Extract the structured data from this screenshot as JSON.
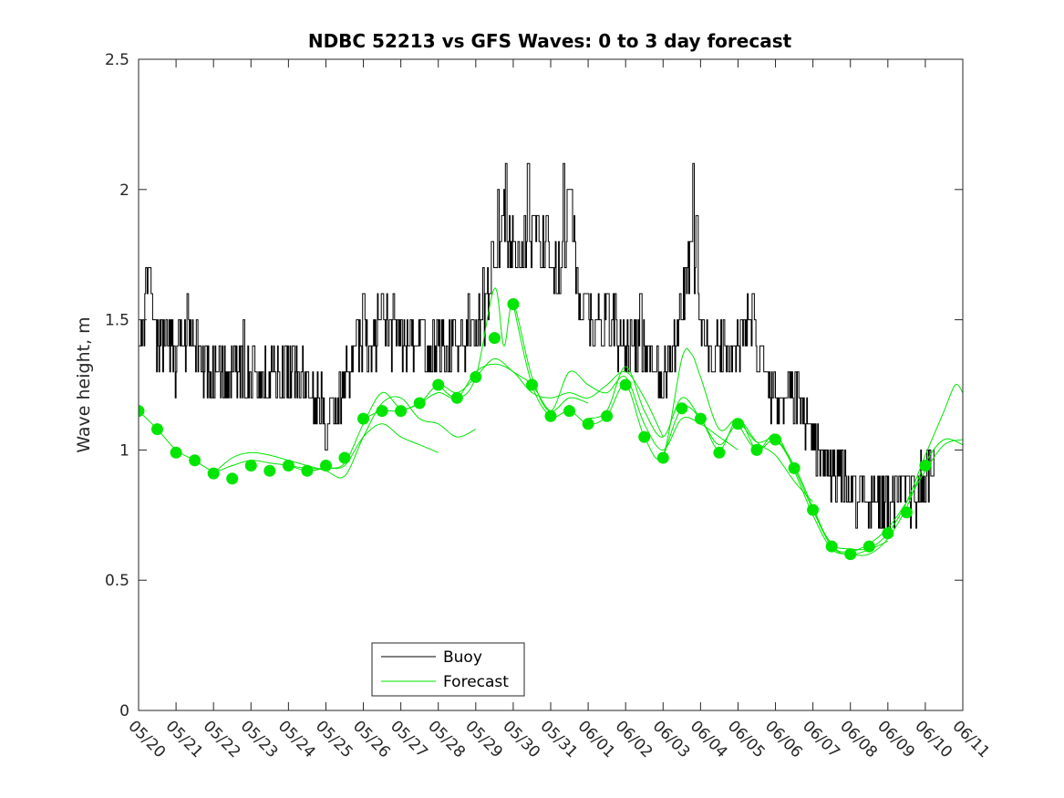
{
  "chart_data": {
    "type": "line",
    "title": "NDBC 52213 vs GFS Waves: 0 to 3 day forecast",
    "xlabel": "",
    "ylabel": "Wave height, m",
    "x_tick_labels": [
      "05/20",
      "05/21",
      "05/22",
      "05/23",
      "05/24",
      "05/25",
      "05/26",
      "05/27",
      "05/28",
      "05/29",
      "05/30",
      "05/31",
      "06/01",
      "06/02",
      "06/03",
      "06/04",
      "06/05",
      "06/06",
      "06/07",
      "06/08",
      "06/09",
      "06/10",
      "06/11"
    ],
    "y_tick_labels": [
      "0",
      "0.5",
      "1",
      "1.5",
      "2",
      "2.5"
    ],
    "ylim": [
      0,
      2.5
    ],
    "xlim_days": [
      0,
      22
    ],
    "grid": false,
    "legend_position": "bottom-center",
    "colors": {
      "buoy": "#000000",
      "forecast": "#00e600",
      "axes": "#262626"
    },
    "legend": [
      {
        "key": "buoy",
        "label": "Buoy"
      },
      {
        "key": "forecast",
        "label": "Forecast"
      }
    ],
    "buoy_anchors": [
      [
        0.0,
        1.45
      ],
      [
        0.15,
        1.45
      ],
      [
        0.25,
        1.65
      ],
      [
        0.35,
        1.55
      ],
      [
        0.5,
        1.4
      ],
      [
        0.75,
        1.45
      ],
      [
        1.0,
        1.35
      ],
      [
        1.25,
        1.4
      ],
      [
        1.5,
        1.45
      ],
      [
        1.75,
        1.3
      ],
      [
        2.0,
        1.28
      ],
      [
        2.5,
        1.3
      ],
      [
        3.0,
        1.3
      ],
      [
        3.5,
        1.27
      ],
      [
        4.0,
        1.3
      ],
      [
        4.5,
        1.28
      ],
      [
        4.75,
        1.2
      ],
      [
        5.0,
        1.12
      ],
      [
        5.25,
        1.15
      ],
      [
        5.5,
        1.28
      ],
      [
        5.75,
        1.35
      ],
      [
        6.0,
        1.45
      ],
      [
        6.5,
        1.45
      ],
      [
        7.0,
        1.45
      ],
      [
        7.5,
        1.4
      ],
      [
        8.0,
        1.38
      ],
      [
        8.5,
        1.4
      ],
      [
        9.0,
        1.45
      ],
      [
        9.25,
        1.55
      ],
      [
        9.5,
        1.75
      ],
      [
        9.75,
        1.85
      ],
      [
        10.0,
        1.75
      ],
      [
        10.25,
        1.65
      ],
      [
        10.5,
        1.85
      ],
      [
        10.75,
        1.8
      ],
      [
        11.0,
        1.7
      ],
      [
        11.25,
        1.65
      ],
      [
        11.5,
        2.0
      ],
      [
        11.75,
        1.55
      ],
      [
        12.0,
        1.5
      ],
      [
        12.5,
        1.48
      ],
      [
        13.0,
        1.4
      ],
      [
        13.5,
        1.38
      ],
      [
        14.0,
        1.3
      ],
      [
        14.25,
        1.4
      ],
      [
        14.5,
        1.55
      ],
      [
        14.75,
        1.75
      ],
      [
        15.0,
        1.5
      ],
      [
        15.25,
        1.35
      ],
      [
        15.5,
        1.38
      ],
      [
        16.0,
        1.4
      ],
      [
        16.25,
        1.5
      ],
      [
        16.5,
        1.4
      ],
      [
        16.75,
        1.25
      ],
      [
        17.0,
        1.22
      ],
      [
        17.5,
        1.22
      ],
      [
        17.75,
        1.15
      ],
      [
        18.0,
        1.05
      ],
      [
        18.25,
        0.95
      ],
      [
        18.5,
        0.9
      ],
      [
        18.75,
        0.88
      ],
      [
        19.0,
        0.85
      ],
      [
        19.5,
        0.82
      ],
      [
        20.0,
        0.8
      ],
      [
        20.25,
        0.8
      ],
      [
        20.5,
        0.82
      ],
      [
        20.75,
        0.85
      ],
      [
        21.0,
        0.88
      ],
      [
        21.25,
        0.95
      ]
    ],
    "buoy_spikes": [
      [
        0.2,
        1.7
      ],
      [
        0.3,
        1.7
      ],
      [
        1.3,
        1.6
      ],
      [
        2.8,
        1.5
      ],
      [
        4.6,
        1.2
      ],
      [
        5.0,
        1.0
      ],
      [
        6.0,
        1.6
      ],
      [
        6.5,
        1.6
      ],
      [
        6.8,
        1.6
      ],
      [
        8.8,
        1.55
      ],
      [
        9.2,
        1.7
      ],
      [
        9.6,
        2.0
      ],
      [
        9.8,
        2.1
      ],
      [
        10.3,
        1.9
      ],
      [
        10.4,
        2.1
      ],
      [
        10.9,
        1.9
      ],
      [
        11.35,
        2.1
      ],
      [
        11.55,
        2.0
      ],
      [
        12.5,
        1.6
      ],
      [
        13.4,
        1.6
      ],
      [
        14.8,
        2.1
      ],
      [
        14.9,
        1.9
      ],
      [
        16.4,
        1.6
      ],
      [
        17.6,
        1.3
      ],
      [
        19.8,
        0.7
      ]
    ],
    "forecast_markers": [
      [
        0.0,
        1.15
      ],
      [
        0.5,
        1.08
      ],
      [
        1.0,
        0.99
      ],
      [
        1.5,
        0.96
      ],
      [
        2.0,
        0.91
      ],
      [
        2.5,
        0.89
      ],
      [
        3.0,
        0.94
      ],
      [
        3.5,
        0.92
      ],
      [
        4.0,
        0.94
      ],
      [
        4.5,
        0.92
      ],
      [
        5.0,
        0.94
      ],
      [
        5.5,
        0.97
      ],
      [
        6.0,
        1.12
      ],
      [
        6.5,
        1.15
      ],
      [
        7.0,
        1.15
      ],
      [
        7.5,
        1.18
      ],
      [
        8.0,
        1.25
      ],
      [
        8.5,
        1.2
      ],
      [
        9.0,
        1.28
      ],
      [
        9.5,
        1.43
      ],
      [
        10.0,
        1.56
      ],
      [
        10.5,
        1.25
      ],
      [
        11.0,
        1.13
      ],
      [
        11.5,
        1.15
      ],
      [
        12.0,
        1.1
      ],
      [
        12.5,
        1.13
      ],
      [
        13.0,
        1.25
      ],
      [
        13.5,
        1.05
      ],
      [
        14.0,
        0.97
      ],
      [
        14.5,
        1.16
      ],
      [
        15.0,
        1.12
      ],
      [
        15.5,
        0.99
      ],
      [
        16.0,
        1.1
      ],
      [
        16.5,
        1.0
      ],
      [
        17.0,
        1.04
      ],
      [
        17.5,
        0.93
      ],
      [
        18.0,
        0.77
      ],
      [
        18.5,
        0.63
      ],
      [
        19.0,
        0.6
      ],
      [
        19.5,
        0.63
      ],
      [
        20.0,
        0.68
      ],
      [
        20.5,
        0.76
      ],
      [
        21.0,
        0.94
      ]
    ],
    "forecast_runs": [
      [
        [
          0.0,
          1.15
        ],
        [
          0.5,
          1.08
        ],
        [
          1.0,
          1.0
        ],
        [
          1.5,
          0.96
        ],
        [
          2.0,
          0.92
        ],
        [
          2.5,
          0.94
        ],
        [
          3.0,
          0.96
        ],
        [
          3.5,
          0.95
        ],
        [
          4.0,
          0.94
        ],
        [
          4.5,
          0.92
        ],
        [
          5.0,
          0.93
        ],
        [
          5.5,
          0.94
        ],
        [
          6.0,
          1.05
        ],
        [
          6.5,
          1.1
        ],
        [
          7.0,
          1.05
        ],
        [
          7.5,
          1.02
        ],
        [
          8.0,
          0.99
        ]
      ],
      [
        [
          2.0,
          0.91
        ],
        [
          2.5,
          0.97
        ],
        [
          3.0,
          0.99
        ],
        [
          3.5,
          0.98
        ],
        [
          4.0,
          0.96
        ],
        [
          4.5,
          0.94
        ],
        [
          5.0,
          0.92
        ],
        [
          5.5,
          0.9
        ],
        [
          6.0,
          1.05
        ],
        [
          6.5,
          1.18
        ],
        [
          7.0,
          1.2
        ],
        [
          7.5,
          1.12
        ],
        [
          8.0,
          1.1
        ],
        [
          8.5,
          1.05
        ],
        [
          9.0,
          1.08
        ]
      ],
      [
        [
          4.0,
          0.94
        ],
        [
          4.5,
          0.93
        ],
        [
          5.0,
          0.93
        ],
        [
          5.5,
          0.95
        ],
        [
          6.0,
          1.1
        ],
        [
          6.5,
          1.22
        ],
        [
          7.0,
          1.16
        ],
        [
          7.5,
          1.18
        ],
        [
          8.0,
          1.25
        ],
        [
          8.5,
          1.22
        ],
        [
          9.0,
          1.28
        ],
        [
          9.5,
          1.35
        ],
        [
          10.0,
          1.3
        ],
        [
          10.5,
          1.25
        ],
        [
          11.0,
          1.15
        ],
        [
          11.5,
          1.2
        ],
        [
          12.0,
          1.18
        ]
      ],
      [
        [
          6.0,
          1.12
        ],
        [
          6.5,
          1.15
        ],
        [
          7.0,
          1.15
        ],
        [
          7.5,
          1.18
        ],
        [
          8.0,
          1.22
        ],
        [
          8.5,
          1.2
        ],
        [
          9.0,
          1.3
        ],
        [
          9.5,
          1.33
        ],
        [
          10.0,
          1.3
        ],
        [
          10.5,
          1.22
        ],
        [
          11.0,
          1.2
        ],
        [
          11.5,
          1.22
        ],
        [
          12.0,
          1.2
        ],
        [
          12.5,
          1.25
        ],
        [
          13.0,
          1.3
        ],
        [
          13.5,
          1.2
        ],
        [
          14.0,
          1.05
        ]
      ],
      [
        [
          8.0,
          1.25
        ],
        [
          8.5,
          1.2
        ],
        [
          9.0,
          1.28
        ],
        [
          9.5,
          1.62
        ],
        [
          9.75,
          1.4
        ],
        [
          10.0,
          1.56
        ],
        [
          10.5,
          1.28
        ],
        [
          11.0,
          1.15
        ],
        [
          11.5,
          1.3
        ],
        [
          12.0,
          1.25
        ],
        [
          12.5,
          1.22
        ],
        [
          13.0,
          1.28
        ],
        [
          13.5,
          1.1
        ],
        [
          14.0,
          1.0
        ],
        [
          14.5,
          1.12
        ],
        [
          15.0,
          1.1
        ],
        [
          15.5,
          1.05
        ],
        [
          16.0,
          1.0
        ]
      ],
      [
        [
          10.0,
          1.56
        ],
        [
          10.5,
          1.25
        ],
        [
          11.0,
          1.13
        ],
        [
          11.5,
          1.15
        ],
        [
          12.0,
          1.1
        ],
        [
          12.5,
          1.13
        ],
        [
          13.0,
          1.25
        ],
        [
          13.5,
          1.05
        ],
        [
          14.0,
          0.98
        ],
        [
          14.5,
          1.35
        ],
        [
          14.75,
          1.37
        ],
        [
          15.0,
          1.28
        ],
        [
          15.5,
          1.08
        ],
        [
          16.0,
          1.12
        ],
        [
          16.5,
          1.03
        ],
        [
          17.0,
          0.98
        ],
        [
          17.5,
          0.88
        ],
        [
          18.0,
          0.8
        ]
      ],
      [
        [
          12.0,
          1.12
        ],
        [
          12.5,
          1.15
        ],
        [
          13.0,
          1.32
        ],
        [
          13.5,
          1.15
        ],
        [
          14.0,
          1.05
        ],
        [
          14.5,
          1.2
        ],
        [
          15.0,
          1.12
        ],
        [
          15.5,
          1.02
        ],
        [
          16.0,
          1.1
        ],
        [
          16.5,
          1.03
        ],
        [
          17.0,
          1.04
        ],
        [
          17.5,
          0.93
        ],
        [
          18.0,
          0.77
        ],
        [
          18.5,
          0.64
        ],
        [
          19.0,
          0.62
        ],
        [
          19.5,
          0.62
        ],
        [
          20.0,
          0.65
        ]
      ],
      [
        [
          14.0,
          0.97
        ],
        [
          14.5,
          1.16
        ],
        [
          15.0,
          1.12
        ],
        [
          15.5,
          1.0
        ],
        [
          16.0,
          1.12
        ],
        [
          16.5,
          1.0
        ],
        [
          17.0,
          1.06
        ],
        [
          17.5,
          0.92
        ],
        [
          18.0,
          0.75
        ],
        [
          18.5,
          0.62
        ],
        [
          19.0,
          0.6
        ],
        [
          19.5,
          0.6
        ],
        [
          20.0,
          0.66
        ],
        [
          20.5,
          0.78
        ],
        [
          21.0,
          0.95
        ],
        [
          21.5,
          1.04
        ],
        [
          22.0,
          1.02
        ]
      ],
      [
        [
          16.0,
          1.1
        ],
        [
          16.5,
          1.0
        ],
        [
          17.0,
          1.04
        ],
        [
          17.5,
          0.94
        ],
        [
          18.0,
          0.78
        ],
        [
          18.5,
          0.63
        ],
        [
          19.0,
          0.6
        ],
        [
          19.5,
          0.62
        ],
        [
          20.0,
          0.68
        ],
        [
          20.5,
          0.8
        ],
        [
          21.0,
          0.98
        ],
        [
          21.5,
          1.15
        ],
        [
          21.8,
          1.25
        ],
        [
          22.0,
          1.22
        ]
      ],
      [
        [
          18.0,
          0.77
        ],
        [
          18.5,
          0.63
        ],
        [
          19.0,
          0.61
        ],
        [
          19.5,
          0.64
        ],
        [
          20.0,
          0.7
        ],
        [
          20.5,
          0.8
        ],
        [
          21.0,
          0.92
        ],
        [
          21.5,
          1.02
        ],
        [
          22.0,
          1.04
        ]
      ]
    ]
  }
}
